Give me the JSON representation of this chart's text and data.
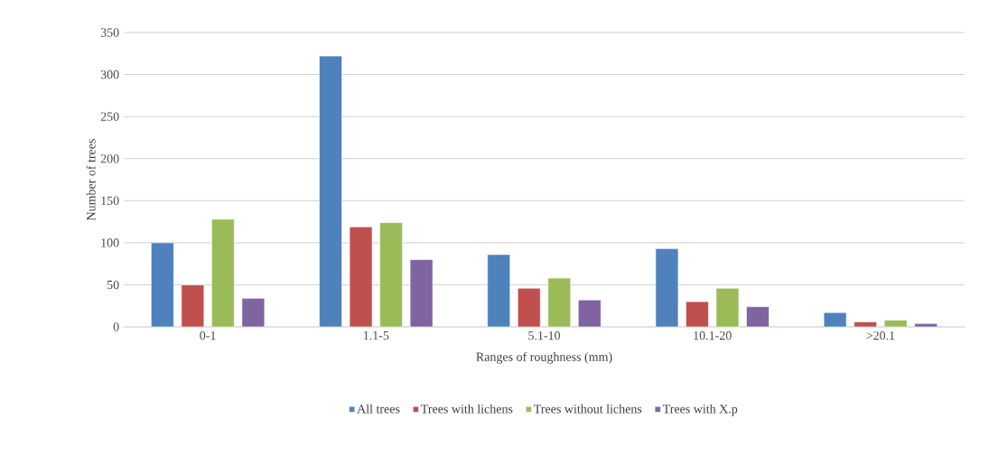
{
  "chart_data": {
    "type": "bar",
    "xlabel": "Ranges of roughness (mm)",
    "ylabel": "Number of trees",
    "categories": [
      "0-1",
      "1.1-5",
      "5.1-10",
      "10.1-20",
      ">20.1"
    ],
    "series": [
      {
        "name": "All trees",
        "color": "#4f81bd",
        "values": [
          100,
          322,
          86,
          93,
          17
        ]
      },
      {
        "name": "Trees with lichens",
        "color": "#c0504d",
        "values": [
          50,
          119,
          46,
          30,
          6
        ]
      },
      {
        "name": "Trees without lichens",
        "color": "#9bbb59",
        "values": [
          128,
          124,
          58,
          46,
          8
        ]
      },
      {
        "name": "Trees with X.p",
        "color": "#8064a2",
        "values": [
          34,
          80,
          32,
          24,
          4
        ]
      }
    ],
    "ylim": [
      0,
      350
    ],
    "yticks": [
      0,
      50,
      100,
      150,
      200,
      250,
      300,
      350
    ],
    "grid": "y",
    "legend": "bottom"
  }
}
